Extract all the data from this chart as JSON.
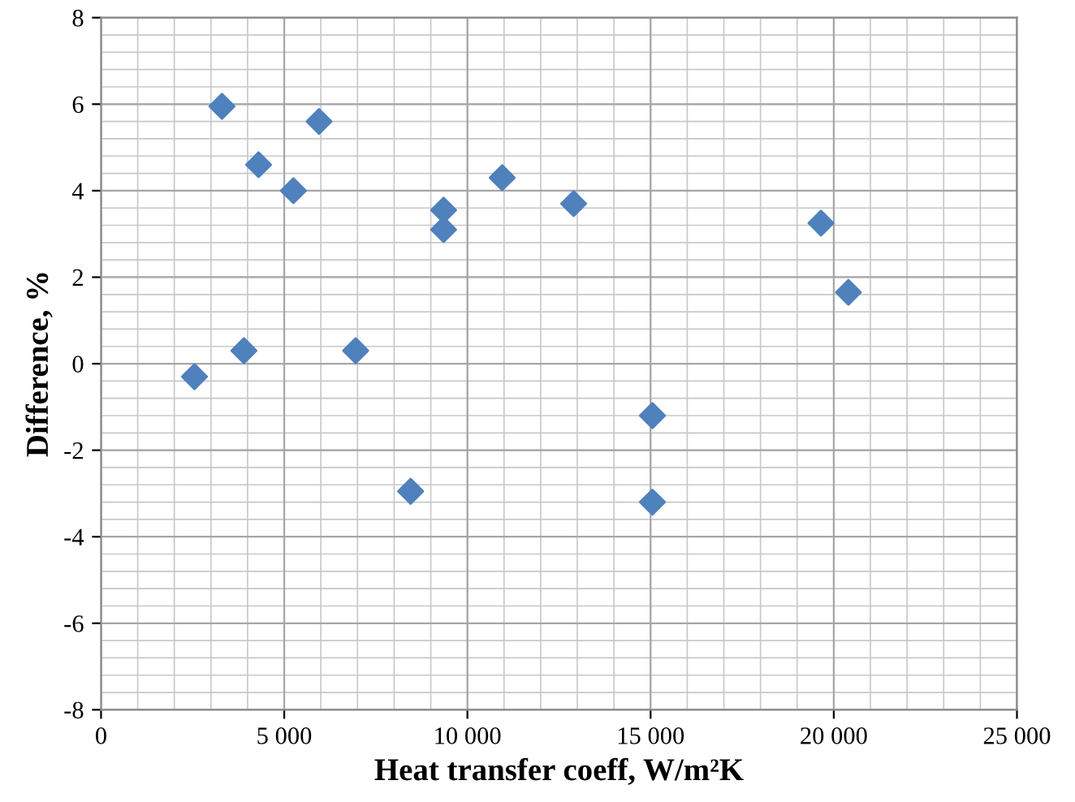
{
  "chart_data": {
    "type": "scatter",
    "xlabel": "Heat transfer coeff, W/m²K",
    "ylabel": "Difference, %",
    "x": [
      2550,
      3300,
      3900,
      4300,
      5250,
      5950,
      6950,
      8450,
      9350,
      9350,
      10950,
      12900,
      15050,
      15050,
      19650,
      20400
    ],
    "series": [
      {
        "color": "#4f81bd",
        "values": [
          -0.3,
          5.95,
          0.3,
          4.6,
          4.0,
          5.6,
          0.3,
          -2.95,
          3.55,
          3.1,
          4.3,
          3.7,
          -1.2,
          -3.2,
          3.25,
          1.65
        ]
      }
    ],
    "xlim": [
      0,
      25000
    ],
    "xticks": [
      0,
      {
        "value": 5000,
        "label": "5 000"
      },
      {
        "value": 10000,
        "label": "10 000"
      },
      {
        "value": 15000,
        "label": "15 000"
      },
      {
        "value": 20000,
        "label": "20 000"
      },
      {
        "value": 25000,
        "label": "25 000"
      }
    ],
    "ylim": [
      -8,
      8
    ],
    "yticks": [
      -8,
      -6,
      -4,
      -2,
      0,
      2,
      4,
      6,
      8
    ],
    "grid": true,
    "marker": "diamond",
    "legend": false
  }
}
